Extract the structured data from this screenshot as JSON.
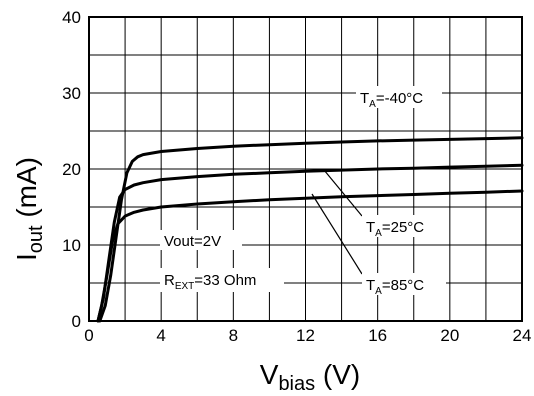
{
  "chart_data": {
    "type": "line",
    "xlabel": {
      "main": "V",
      "sub": "bias",
      "unit": " (V)"
    },
    "ylabel": {
      "main": "I",
      "sub": "out",
      "unit": " (mA)"
    },
    "xlim": [
      0,
      24
    ],
    "ylim": [
      0,
      40
    ],
    "xticks": [
      0,
      4,
      8,
      12,
      16,
      20,
      24
    ],
    "yticks": [
      0,
      10,
      20,
      30,
      40
    ],
    "x_minor_step": 2,
    "y_minor_step": 5,
    "grid": true,
    "series": [
      {
        "label": {
          "main": "T",
          "sub": "A",
          "rest": "=-40°C"
        },
        "x": [
          0.6,
          0.9,
          1.2,
          1.5,
          1.8,
          2.1,
          2.4,
          2.7,
          3.0,
          4.0,
          6,
          8,
          10,
          12,
          14,
          16,
          18,
          20,
          22,
          24
        ],
        "y": [
          0,
          2,
          6,
          11,
          16,
          19.5,
          21,
          21.6,
          21.9,
          22.3,
          22.7,
          23.0,
          23.2,
          23.4,
          23.55,
          23.7,
          23.8,
          23.9,
          24.0,
          24.1
        ]
      },
      {
        "label": {
          "main": "T",
          "sub": "A",
          "rest": "=25°C"
        },
        "x": [
          0.5,
          0.8,
          1.1,
          1.4,
          1.7,
          2.0,
          2.5,
          3,
          4,
          6,
          8,
          10,
          12,
          14,
          16,
          18,
          20,
          22,
          24
        ],
        "y": [
          0,
          3,
          8,
          13,
          16.3,
          17.3,
          17.9,
          18.2,
          18.6,
          19.0,
          19.3,
          19.5,
          19.7,
          19.85,
          20.0,
          20.1,
          20.25,
          20.35,
          20.5
        ]
      },
      {
        "label": {
          "main": "T",
          "sub": "A",
          "rest": "=85°C"
        },
        "x": [
          0.5,
          0.7,
          1.0,
          1.3,
          1.6,
          2.0,
          2.5,
          3,
          4,
          6,
          8,
          10,
          12,
          14,
          16,
          18,
          20,
          22,
          24
        ],
        "y": [
          0,
          2,
          6,
          10.5,
          12.8,
          13.8,
          14.3,
          14.6,
          15.0,
          15.4,
          15.7,
          15.95,
          16.15,
          16.35,
          16.5,
          16.65,
          16.8,
          16.95,
          17.1
        ]
      }
    ],
    "annotations": [
      {
        "text": "Vout=2V"
      },
      {
        "main": "R",
        "sub": "EXT",
        "rest": "=33 Ohm"
      }
    ]
  }
}
